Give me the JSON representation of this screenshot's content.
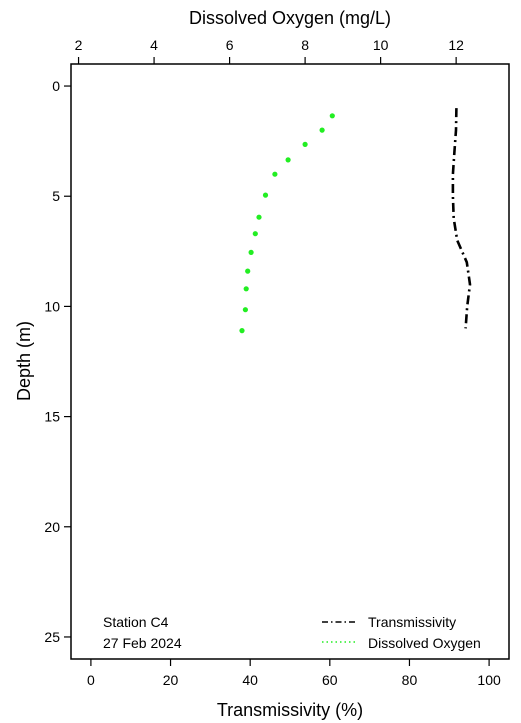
{
  "chart_data": {
    "type": "line",
    "orientation": "depth-profile",
    "x_bottom": {
      "label": "Transmissivity (%)",
      "lim": [
        -5,
        105
      ],
      "ticks": [
        0,
        20,
        40,
        60,
        80,
        100
      ]
    },
    "x_top": {
      "label": "Dissolved Oxygen (mg/L)",
      "lim": [
        1.8,
        13.4
      ],
      "ticks": [
        2,
        4,
        6,
        8,
        10,
        12
      ]
    },
    "y": {
      "label": "Depth (m)",
      "lim": [
        -1,
        26
      ],
      "inverted": true,
      "ticks": [
        0,
        5,
        10,
        15,
        20,
        25
      ]
    },
    "series": [
      {
        "name": "Transmissivity",
        "axis": "bottom",
        "style": "dashdot",
        "color": "#000000",
        "points": [
          [
            91.8,
            1.0
          ],
          [
            91.7,
            2.0
          ],
          [
            91.3,
            3.0
          ],
          [
            90.9,
            4.0
          ],
          [
            90.9,
            5.0
          ],
          [
            91.1,
            6.0
          ],
          [
            92.0,
            7.0
          ],
          [
            94.4,
            8.0
          ],
          [
            95.2,
            9.0
          ],
          [
            94.5,
            10.0
          ],
          [
            94.1,
            11.0
          ]
        ]
      },
      {
        "name": "Dissolved Oxygen",
        "axis": "top",
        "style": "dotted",
        "color": "#22ee22",
        "points": [
          [
            8.72,
            1.35
          ],
          [
            8.45,
            2.0
          ],
          [
            8.0,
            2.65
          ],
          [
            7.55,
            3.35
          ],
          [
            7.2,
            4.0
          ],
          [
            6.95,
            4.95
          ],
          [
            6.78,
            5.95
          ],
          [
            6.68,
            6.7
          ],
          [
            6.57,
            7.55
          ],
          [
            6.48,
            8.4
          ],
          [
            6.44,
            9.2
          ],
          [
            6.42,
            10.15
          ],
          [
            6.33,
            11.1
          ]
        ]
      }
    ],
    "legend": {
      "position": "bottom-right",
      "entries": [
        "Transmissivity",
        "Dissolved Oxygen"
      ]
    },
    "annotation": {
      "line1": "Station C4",
      "line2": "27 Feb 2024",
      "position": "bottom-left"
    }
  }
}
